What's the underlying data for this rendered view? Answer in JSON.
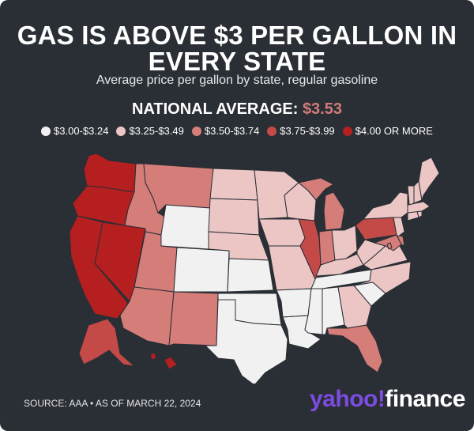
{
  "header": {
    "title_line1": "GAS IS ABOVE $3 PER GALLON IN",
    "title_line2": "EVERY STATE",
    "subtitle": "Average price per gallon by state, regular gasoline",
    "national_label": "NATIONAL AVERAGE:",
    "national_value": "$3.53"
  },
  "legend": [
    {
      "label": "$3.00-$3.24",
      "color": "#f1f1f1"
    },
    {
      "label": "$3.25-$3.49",
      "color": "#ebc6c4"
    },
    {
      "label": "$3.50-$3.74",
      "color": "#d57d79"
    },
    {
      "label": "$3.75-$3.99",
      "color": "#c44a47"
    },
    {
      "label": "$4.00 OR MORE",
      "color": "#b51f1f"
    }
  ],
  "map_data": {
    "states": {
      "WA": "$4.00 OR MORE",
      "OR": "$4.00 OR MORE",
      "CA": "$4.00 OR MORE",
      "NV": "$4.00 OR MORE",
      "HI": "$4.00 OR MORE",
      "IL": "$3.75-$3.99",
      "PA": "$3.75-$3.99",
      "AK": "$3.75-$3.99",
      "ID": "$3.50-$3.74",
      "MT": "$3.50-$3.74",
      "UT": "$3.50-$3.74",
      "AZ": "$3.50-$3.74",
      "NM": "$3.50-$3.74",
      "MI": "$3.50-$3.74",
      "IN": "$3.50-$3.74",
      "FL": "$3.50-$3.74",
      "MD": "$3.50-$3.74",
      "DE": "$3.50-$3.74",
      "DC": "$3.50-$3.74",
      "ND": "$3.25-$3.49",
      "SD": "$3.25-$3.49",
      "NE": "$3.25-$3.49",
      "MN": "$3.25-$3.49",
      "IA": "$3.25-$3.49",
      "MO": "$3.25-$3.49",
      "WI": "$3.25-$3.49",
      "OH": "$3.25-$3.49",
      "KY": "$3.25-$3.49",
      "WV": "$3.25-$3.49",
      "VA": "$3.25-$3.49",
      "NC": "$3.25-$3.49",
      "GA": "$3.25-$3.49",
      "NY": "$3.25-$3.49",
      "NJ": "$3.25-$3.49",
      "CT": "$3.25-$3.49",
      "RI": "$3.25-$3.49",
      "MA": "$3.25-$3.49",
      "VT": "$3.25-$3.49",
      "NH": "$3.25-$3.49",
      "ME": "$3.25-$3.49",
      "WY": "$3.00-$3.24",
      "CO": "$3.00-$3.24",
      "KS": "$3.00-$3.24",
      "OK": "$3.00-$3.24",
      "TX": "$3.00-$3.24",
      "AR": "$3.00-$3.24",
      "LA": "$3.00-$3.24",
      "MS": "$3.00-$3.24",
      "AL": "$3.00-$3.24",
      "TN": "$3.00-$3.24",
      "SC": "$3.00-$3.24"
    }
  },
  "footer": {
    "source": "SOURCE: AAA • AS OF MARCH 22, 2024",
    "logo_brand": "yahoo",
    "logo_mark": "!",
    "logo_product": "finance"
  }
}
